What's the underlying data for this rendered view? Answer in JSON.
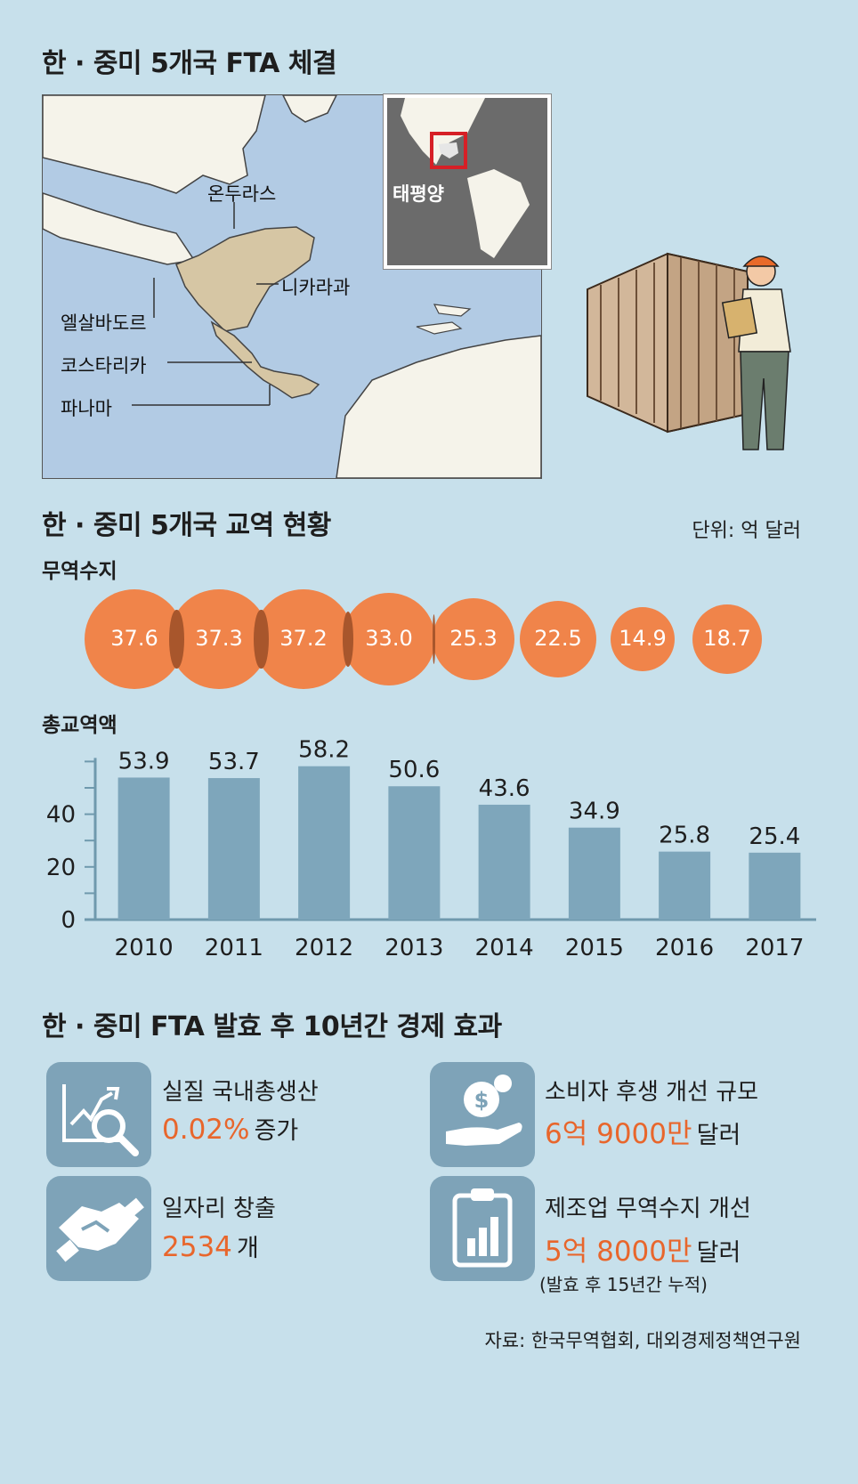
{
  "section1": {
    "title": "한 · 중미 5개국 FTA 체결",
    "countries": [
      "온두라스",
      "니카라과",
      "엘살바도르",
      "코스타리카",
      "파나마"
    ],
    "ocean": "태평양"
  },
  "section2": {
    "title": "한 · 중미 5개국 교역 현황",
    "unit": "단위: 억 달러",
    "balance_label": "무역수지",
    "total_label": "총교역액"
  },
  "chart_data": [
    {
      "type": "bubble",
      "title": "무역수지",
      "categories": [
        "2010",
        "2011",
        "2012",
        "2013",
        "2014",
        "2015",
        "2016",
        "2017"
      ],
      "values": [
        37.6,
        37.3,
        37.2,
        33.0,
        25.3,
        22.5,
        14.9,
        18.7
      ],
      "value_labels": [
        "37.6",
        "37.3",
        "37.2",
        "33.0",
        "25.3",
        "22.5",
        "14.9",
        "18.7"
      ],
      "color": "#f0844a"
    },
    {
      "type": "bar",
      "title": "총교역액",
      "categories": [
        "2010",
        "2011",
        "2012",
        "2013",
        "2014",
        "2015",
        "2016",
        "2017"
      ],
      "values": [
        53.9,
        53.7,
        58.2,
        50.6,
        43.6,
        34.9,
        25.8,
        25.4
      ],
      "value_labels": [
        "53.9",
        "53.7",
        "58.2",
        "50.6",
        "43.6",
        "34.9",
        "25.8",
        "25.4"
      ],
      "yticks": [
        "0",
        "20",
        "40"
      ],
      "ylim": [
        0,
        60
      ],
      "color": "#7ea6bb"
    }
  ],
  "section3": {
    "title": "한 · 중미 FTA 발효 후 10년간 경제 효과",
    "effects": [
      {
        "label": "실질 국내총생산",
        "value": "0.02%",
        "unit": "증가",
        "icon": "chart-magnifier-icon"
      },
      {
        "label": "소비자 후생 개선 규모",
        "value": "6억 9000만",
        "unit": "달러",
        "icon": "money-hand-icon"
      },
      {
        "label": "일자리 창출",
        "value": "2534",
        "unit": "개",
        "icon": "handshake-icon"
      },
      {
        "label": "제조업 무역수지 개선",
        "value": "5억 8000만",
        "unit": "달러",
        "note": "(발효 후 15년간 누적)",
        "icon": "clipboard-chart-icon"
      }
    ],
    "value_color": "#e8662c",
    "icon_bg": "#7ea3b8"
  },
  "source": "자료: 한국무역협회, 대외경제정책연구원"
}
